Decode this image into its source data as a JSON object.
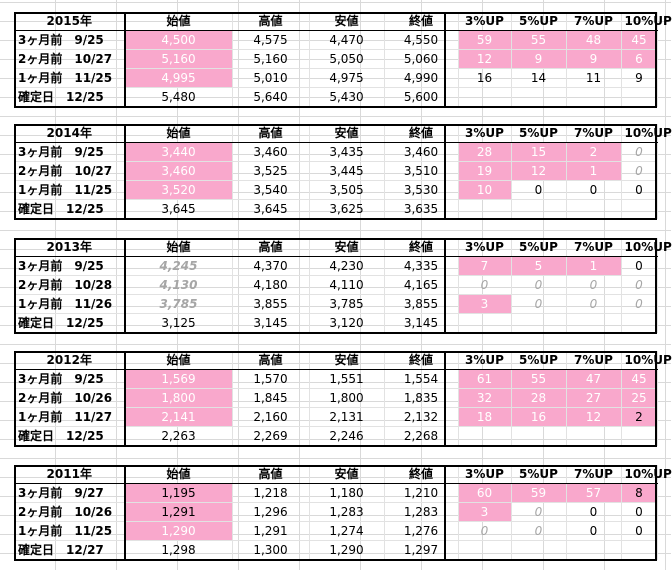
{
  "headers": [
    "始値",
    "高値",
    "安値",
    "終値",
    "3%UP",
    "5%UP",
    "7%UP",
    "10%UP"
  ],
  "blocks": [
    {
      "year": "2015年",
      "rows": [
        {
          "label": "3ヶ月前　9/25",
          "vals": [
            "4,500",
            "4,575",
            "4,470",
            "4,550",
            "59",
            "55",
            "48",
            "45"
          ]
        },
        {
          "label": "2ヶ月前　10/27",
          "vals": [
            "5,160",
            "5,160",
            "5,050",
            "5,060",
            "12",
            "9",
            "9",
            "6"
          ]
        },
        {
          "label": "1ヶ月前　11/25",
          "vals": [
            "4,995",
            "5,010",
            "4,975",
            "4,990",
            "16",
            "14",
            "11",
            "9"
          ]
        },
        {
          "label": "確定日　12/25",
          "vals": [
            "5,480",
            "5,640",
            "5,430",
            "5,600",
            "",
            "",
            "",
            ""
          ]
        }
      ]
    },
    {
      "year": "2014年",
      "rows": [
        {
          "label": "3ヶ月前　9/25",
          "vals": [
            "3,440",
            "3,460",
            "3,435",
            "3,460",
            "28",
            "15",
            "2",
            "0"
          ]
        },
        {
          "label": "2ヶ月前　10/27",
          "vals": [
            "3,460",
            "3,525",
            "3,445",
            "3,510",
            "19",
            "12",
            "1",
            "0"
          ]
        },
        {
          "label": "1ヶ月前　11/25",
          "vals": [
            "3,520",
            "3,540",
            "3,505",
            "3,530",
            "10",
            "0",
            "0",
            "0"
          ]
        },
        {
          "label": "確定日　12/25",
          "vals": [
            "3,645",
            "3,645",
            "3,625",
            "3,635",
            "",
            "",
            "",
            ""
          ]
        }
      ]
    },
    {
      "year": "2013年",
      "rows": [
        {
          "label": "3ヶ月前　9/25",
          "vals": [
            "4,245",
            "4,370",
            "4,230",
            "4,335",
            "7",
            "5",
            "1",
            "0"
          ]
        },
        {
          "label": "2ヶ月前　10/28",
          "vals": [
            "4,130",
            "4,180",
            "4,110",
            "4,165",
            "0",
            "0",
            "0",
            "0"
          ]
        },
        {
          "label": "1ヶ月前　11/26",
          "vals": [
            "3,785",
            "3,855",
            "3,785",
            "3,855",
            "3",
            "0",
            "0",
            "0"
          ]
        },
        {
          "label": "確定日　12/25",
          "vals": [
            "3,125",
            "3,145",
            "3,120",
            "3,145",
            "",
            "",
            "",
            ""
          ]
        }
      ]
    },
    {
      "year": "2012年",
      "rows": [
        {
          "label": "3ヶ月前　9/25",
          "vals": [
            "1,569",
            "1,570",
            "1,551",
            "1,554",
            "61",
            "55",
            "47",
            "45"
          ]
        },
        {
          "label": "2ヶ月前　10/26",
          "vals": [
            "1,800",
            "1,845",
            "1,800",
            "1,835",
            "32",
            "28",
            "27",
            "25"
          ]
        },
        {
          "label": "1ヶ月前　11/27",
          "vals": [
            "2,141",
            "2,160",
            "2,131",
            "2,132",
            "18",
            "16",
            "12",
            "2"
          ]
        },
        {
          "label": "確定日　12/25",
          "vals": [
            "2,263",
            "2,269",
            "2,246",
            "2,268",
            "",
            "",
            "",
            ""
          ]
        }
      ]
    },
    {
      "year": "2011年",
      "rows": [
        {
          "label": "3ヶ月前　9/27",
          "vals": [
            "1,195",
            "1,218",
            "1,180",
            "1,210",
            "60",
            "59",
            "57",
            "8"
          ]
        },
        {
          "label": "2ヶ月前　10/26",
          "vals": [
            "1,291",
            "1,296",
            "1,283",
            "1,283",
            "3",
            "0",
            "0",
            "0"
          ]
        },
        {
          "label": "1ヶ月前　11/25",
          "vals": [
            "1,290",
            "1,291",
            "1,274",
            "1,276",
            "0",
            "0",
            "0",
            "0"
          ]
        },
        {
          "label": "確定日　12/27",
          "vals": [
            "1,298",
            "1,300",
            "1,290",
            "1,297",
            "",
            "",
            "",
            ""
          ]
        }
      ]
    }
  ]
}
